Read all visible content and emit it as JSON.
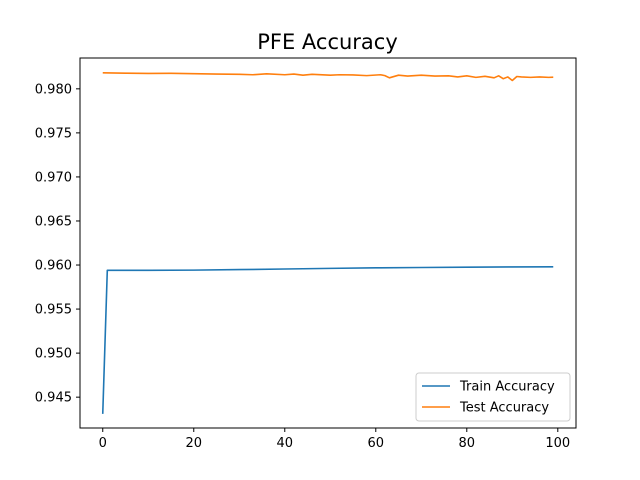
{
  "chart_data": {
    "type": "line",
    "title": "PFE Accuracy",
    "xlabel": "",
    "ylabel": "",
    "xlim": [
      -5,
      104
    ],
    "ylim": [
      0.9415,
      0.9835
    ],
    "xticks": [
      0,
      20,
      40,
      60,
      80,
      100
    ],
    "xtick_labels": [
      "0",
      "20",
      "40",
      "60",
      "80",
      "100"
    ],
    "yticks": [
      0.945,
      0.95,
      0.955,
      0.96,
      0.965,
      0.97,
      0.975,
      0.98
    ],
    "ytick_labels": [
      "0.945",
      "0.950",
      "0.955",
      "0.960",
      "0.965",
      "0.970",
      "0.975",
      "0.980"
    ],
    "grid": false,
    "legend_position": "lower-right",
    "series": [
      {
        "name": "Train Accuracy",
        "color": "#1f77b4",
        "x": [
          0,
          1,
          2,
          5,
          10,
          20,
          30,
          40,
          50,
          60,
          70,
          80,
          90,
          99
        ],
        "y": [
          0.9431,
          0.9594,
          0.9594,
          0.9594,
          0.9594,
          0.95942,
          0.95948,
          0.95955,
          0.95962,
          0.95968,
          0.95972,
          0.95975,
          0.95978,
          0.9598
        ]
      },
      {
        "name": "Test Accuracy",
        "color": "#ff7f0e",
        "x": [
          0,
          5,
          10,
          15,
          20,
          25,
          30,
          33,
          36,
          40,
          42,
          44,
          46,
          50,
          52,
          55,
          58,
          61,
          62,
          63,
          65,
          67,
          70,
          73,
          76,
          78,
          80,
          82,
          84,
          86,
          87,
          88,
          89,
          90,
          91,
          92,
          94,
          96,
          98,
          99
        ],
        "y": [
          0.98182,
          0.98178,
          0.98175,
          0.98176,
          0.98172,
          0.98168,
          0.98165,
          0.9816,
          0.9817,
          0.9816,
          0.98168,
          0.98155,
          0.98165,
          0.98155,
          0.9816,
          0.98158,
          0.9815,
          0.9816,
          0.9815,
          0.98125,
          0.98155,
          0.98145,
          0.98155,
          0.98145,
          0.98148,
          0.98135,
          0.98148,
          0.9813,
          0.98142,
          0.98125,
          0.98148,
          0.98115,
          0.98135,
          0.98095,
          0.9814,
          0.98135,
          0.9813,
          0.98135,
          0.9813,
          0.98132
        ]
      }
    ]
  }
}
